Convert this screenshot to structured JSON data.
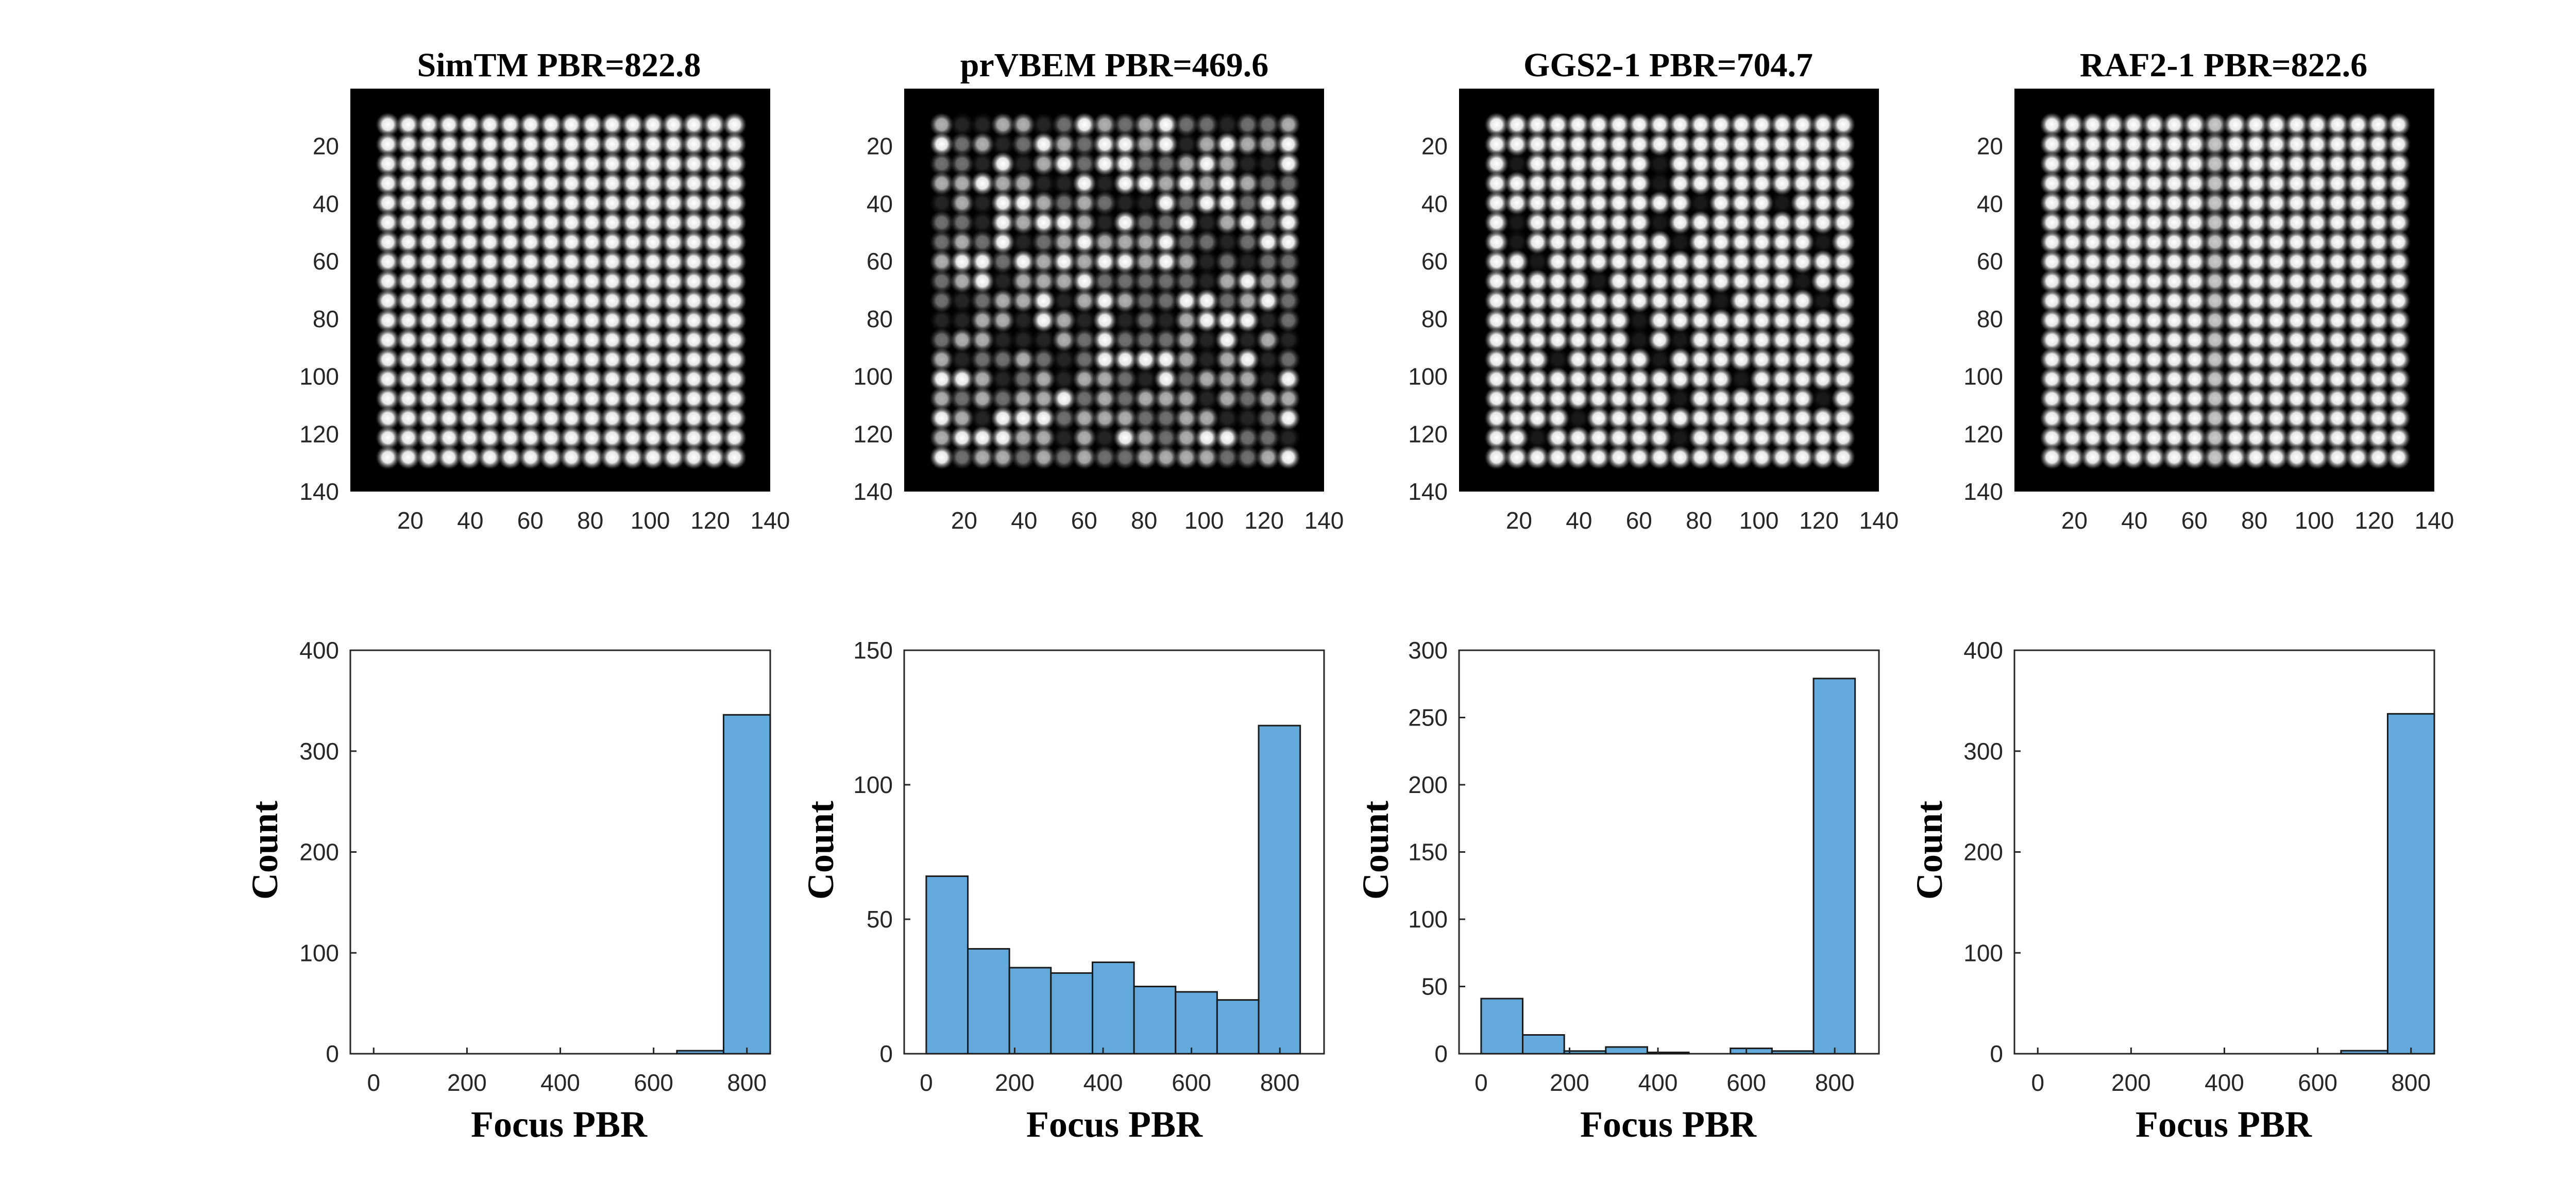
{
  "colors": {
    "bar_fill": "#63a9db",
    "bar_edge": "#1a1a1a",
    "axis": "#262626",
    "image_background": "#000000",
    "spot": "#ffffff"
  },
  "chart_data": [
    {
      "type": "heatmap",
      "title": "SimTM PBR=822.8",
      "colormap": "gray",
      "xlim": [
        0,
        140
      ],
      "ylim": [
        0,
        140
      ],
      "y_direction": "reversed",
      "xticks": [
        20,
        40,
        60,
        80,
        100,
        120,
        140
      ],
      "yticks": [
        20,
        40,
        60,
        80,
        100,
        120,
        140
      ],
      "grid": {
        "rows": 18,
        "cols": 18,
        "start": 12.5,
        "spacing": 6.8
      },
      "weak_spots": []
    },
    {
      "type": "heatmap",
      "title": "prVBEM PBR=469.6",
      "colormap": "gray",
      "xlim": [
        0,
        140
      ],
      "ylim": [
        0,
        140
      ],
      "y_direction": "reversed",
      "xticks": [
        20,
        40,
        60,
        80,
        100,
        120,
        140
      ],
      "yticks": [
        20,
        40,
        60,
        80,
        100,
        120,
        140
      ],
      "grid": {
        "rows": 18,
        "cols": 18,
        "start": 12.5,
        "spacing": 6.8
      },
      "intensity_pattern": "highly variable"
    },
    {
      "type": "heatmap",
      "title": "GGS2-1 PBR=704.7",
      "colormap": "gray",
      "xlim": [
        0,
        140
      ],
      "ylim": [
        0,
        140
      ],
      "y_direction": "reversed",
      "xticks": [
        20,
        40,
        60,
        80,
        100,
        120,
        140
      ],
      "yticks": [
        20,
        40,
        60,
        80,
        100,
        120,
        140
      ],
      "grid": {
        "rows": 18,
        "cols": 18,
        "start": 12.5,
        "spacing": 6.8
      },
      "weak_spots": [
        [
          2,
          1
        ],
        [
          2,
          8
        ],
        [
          3,
          8
        ],
        [
          4,
          10
        ],
        [
          4,
          14
        ],
        [
          5,
          1
        ],
        [
          5,
          8
        ],
        [
          6,
          1
        ],
        [
          6,
          9
        ],
        [
          6,
          16
        ],
        [
          7,
          2
        ],
        [
          8,
          5
        ],
        [
          8,
          15
        ],
        [
          9,
          11
        ],
        [
          9,
          16
        ],
        [
          10,
          7
        ],
        [
          11,
          7
        ],
        [
          11,
          9
        ],
        [
          12,
          3
        ],
        [
          12,
          8
        ],
        [
          13,
          12
        ],
        [
          14,
          9
        ],
        [
          14,
          16
        ],
        [
          15,
          4
        ],
        [
          16,
          2
        ],
        [
          16,
          9
        ]
      ]
    },
    {
      "type": "heatmap",
      "title": "RAF2-1 PBR=822.6",
      "colormap": "gray",
      "xlim": [
        0,
        140
      ],
      "ylim": [
        0,
        140
      ],
      "y_direction": "reversed",
      "xticks": [
        20,
        40,
        60,
        80,
        100,
        120,
        140
      ],
      "yticks": [
        20,
        40,
        60,
        80,
        100,
        120,
        140
      ],
      "grid": {
        "rows": 18,
        "cols": 18,
        "start": 12.5,
        "spacing": 6.8
      },
      "dim_column": 8
    },
    {
      "type": "bar",
      "xlabel": "Focus PBR",
      "ylabel": "Count",
      "xlim": [
        -50,
        850
      ],
      "ylim": [
        0,
        400
      ],
      "xticks": [
        0,
        200,
        400,
        600,
        800
      ],
      "yticks": [
        0,
        100,
        200,
        300,
        400
      ],
      "bins": [
        {
          "left": 650,
          "right": 750,
          "count": 3
        },
        {
          "left": 750,
          "right": 850,
          "count": 336
        }
      ]
    },
    {
      "type": "bar",
      "xlabel": "Focus PBR",
      "ylabel": "Count",
      "xlim": [
        -50,
        900
      ],
      "ylim": [
        0,
        150
      ],
      "xticks": [
        0,
        200,
        400,
        600,
        800
      ],
      "yticks": [
        0,
        50,
        100,
        150
      ],
      "bins": [
        {
          "left": 0,
          "right": 94,
          "count": 66
        },
        {
          "left": 94,
          "right": 188,
          "count": 39
        },
        {
          "left": 188,
          "right": 282,
          "count": 32
        },
        {
          "left": 282,
          "right": 376,
          "count": 30
        },
        {
          "left": 376,
          "right": 470,
          "count": 34
        },
        {
          "left": 470,
          "right": 564,
          "count": 25
        },
        {
          "left": 564,
          "right": 658,
          "count": 23
        },
        {
          "left": 658,
          "right": 752,
          "count": 20
        },
        {
          "left": 752,
          "right": 846,
          "count": 122
        }
      ]
    },
    {
      "type": "bar",
      "xlabel": "Focus PBR",
      "ylabel": "Count",
      "xlim": [
        -50,
        900
      ],
      "ylim": [
        0,
        300
      ],
      "xticks": [
        0,
        200,
        400,
        600,
        800
      ],
      "yticks": [
        0,
        50,
        100,
        150,
        200,
        250,
        300
      ],
      "bins": [
        {
          "left": 0,
          "right": 94,
          "count": 41
        },
        {
          "left": 94,
          "right": 188,
          "count": 14
        },
        {
          "left": 188,
          "right": 282,
          "count": 2
        },
        {
          "left": 282,
          "right": 376,
          "count": 5
        },
        {
          "left": 376,
          "right": 470,
          "count": 1
        },
        {
          "left": 470,
          "right": 564,
          "count": 0
        },
        {
          "left": 564,
          "right": 658,
          "count": 4
        },
        {
          "left": 658,
          "right": 752,
          "count": 2
        },
        {
          "left": 752,
          "right": 846,
          "count": 279
        }
      ]
    },
    {
      "type": "bar",
      "xlabel": "Focus PBR",
      "ylabel": "Count",
      "xlim": [
        -50,
        850
      ],
      "ylim": [
        0,
        400
      ],
      "xticks": [
        0,
        200,
        400,
        600,
        800
      ],
      "yticks": [
        0,
        100,
        200,
        300,
        400
      ],
      "bins": [
        {
          "left": 650,
          "right": 750,
          "count": 3
        },
        {
          "left": 750,
          "right": 850,
          "count": 337
        }
      ]
    }
  ]
}
